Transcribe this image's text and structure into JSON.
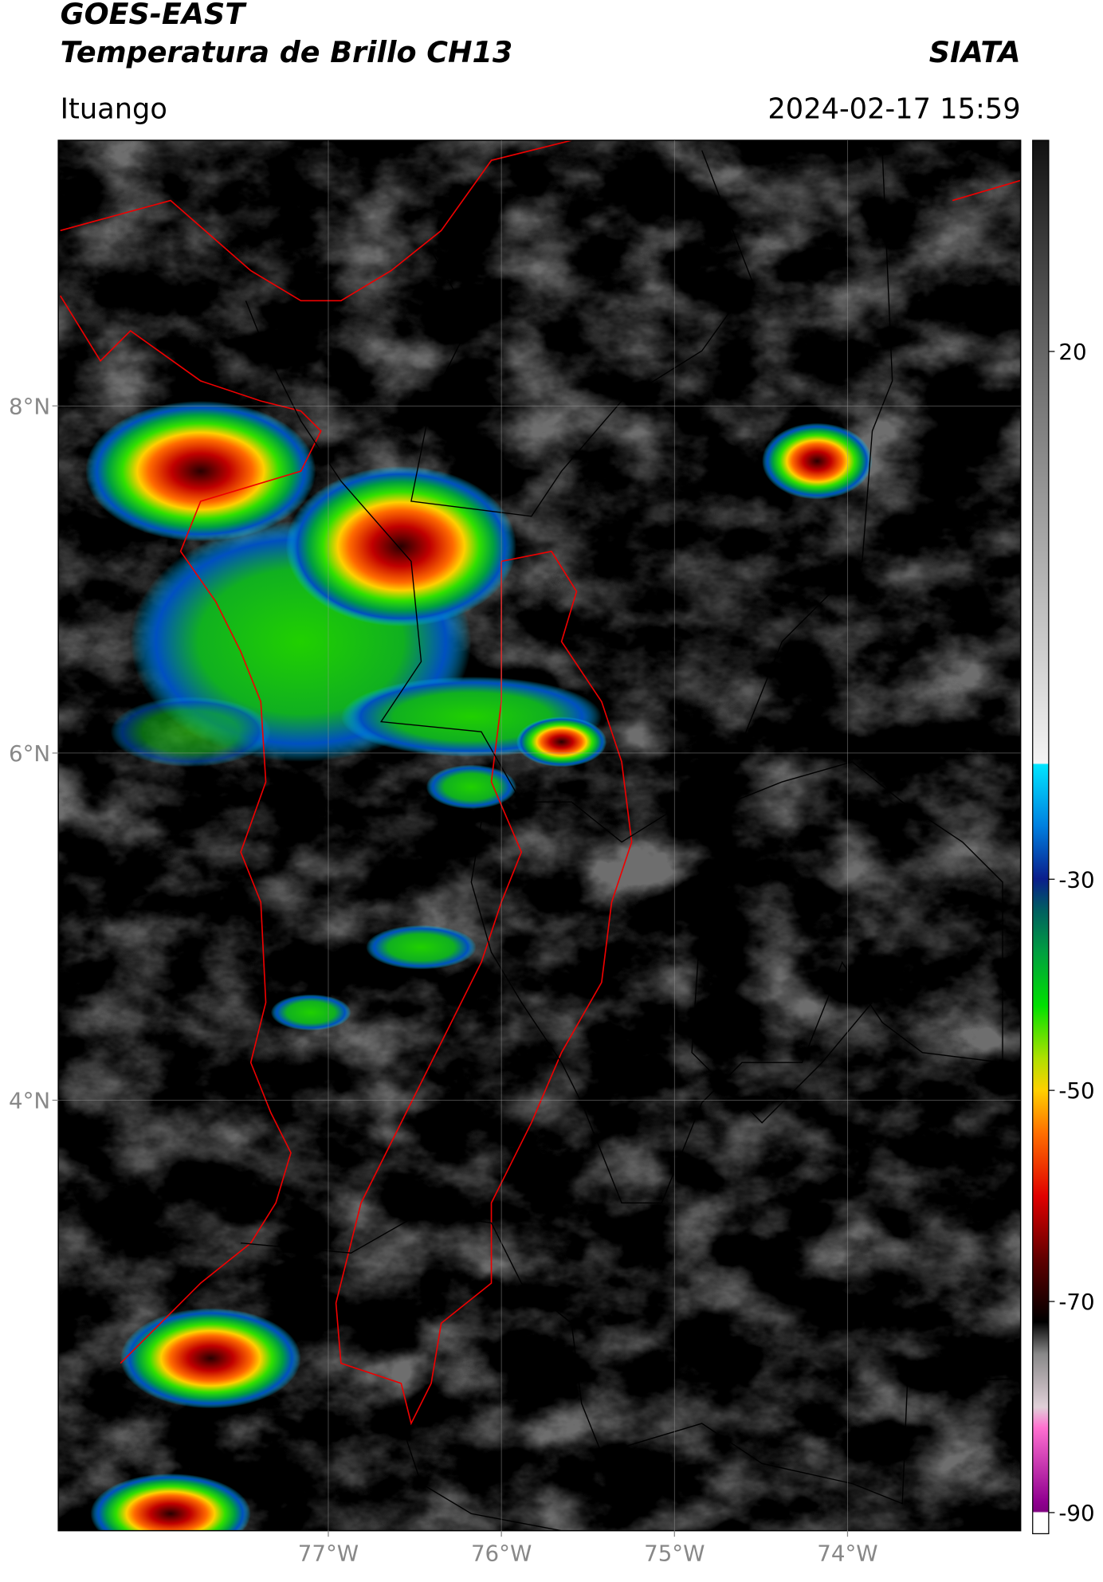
{
  "header": {
    "satellite": "GOES-EAST",
    "product": "Temperatura de Brillo CH13",
    "institution": "SIATA",
    "region": "Ituango",
    "datetime": "2024-02-17 15:59"
  },
  "map": {
    "xlim": [
      -78.56,
      -73.0
    ],
    "ylim": [
      1.52,
      9.53
    ],
    "xticks": [
      {
        "value": -77,
        "label": "77°W"
      },
      {
        "value": -76,
        "label": "76°W"
      },
      {
        "value": -75,
        "label": "75°W"
      },
      {
        "value": -74,
        "label": "74°W"
      }
    ],
    "yticks": [
      {
        "value": 8,
        "label": "8°N"
      },
      {
        "value": 6,
        "label": "6°N"
      },
      {
        "value": 4,
        "label": "4°N"
      }
    ],
    "grid": true
  },
  "colorbar": {
    "clim": [
      -92,
      40
    ],
    "ticks": [
      20,
      -30,
      -50,
      -70,
      -90
    ]
  }
}
